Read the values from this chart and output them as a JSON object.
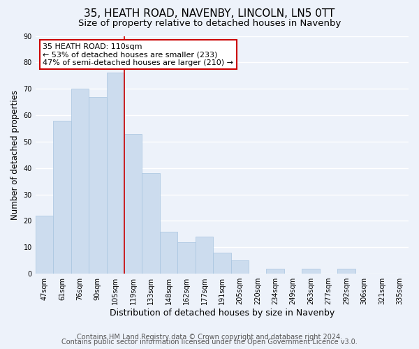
{
  "title": "35, HEATH ROAD, NAVENBY, LINCOLN, LN5 0TT",
  "subtitle": "Size of property relative to detached houses in Navenby",
  "xlabel": "Distribution of detached houses by size in Navenby",
  "ylabel": "Number of detached properties",
  "bar_labels": [
    "47sqm",
    "61sqm",
    "76sqm",
    "90sqm",
    "105sqm",
    "119sqm",
    "133sqm",
    "148sqm",
    "162sqm",
    "177sqm",
    "191sqm",
    "205sqm",
    "220sqm",
    "234sqm",
    "249sqm",
    "263sqm",
    "277sqm",
    "292sqm",
    "306sqm",
    "321sqm",
    "335sqm"
  ],
  "bar_values": [
    22,
    58,
    70,
    67,
    76,
    53,
    38,
    16,
    12,
    14,
    8,
    5,
    0,
    2,
    0,
    2,
    0,
    2,
    0,
    0,
    0
  ],
  "bar_color": "#ccdcee",
  "bar_edge_color": "#a8c4e0",
  "highlight_bar_index": 4,
  "annotation_title": "35 HEATH ROAD: 110sqm",
  "annotation_line1": "← 53% of detached houses are smaller (233)",
  "annotation_line2": "47% of semi-detached houses are larger (210) →",
  "annotation_box_color": "#ffffff",
  "annotation_box_edge": "#cc0000",
  "line_color": "#cc0000",
  "ylim": [
    0,
    90
  ],
  "yticks": [
    0,
    10,
    20,
    30,
    40,
    50,
    60,
    70,
    80,
    90
  ],
  "footer1": "Contains HM Land Registry data © Crown copyright and database right 2024.",
  "footer2": "Contains public sector information licensed under the Open Government Licence v3.0.",
  "background_color": "#edf2fa",
  "grid_color": "#ffffff",
  "title_fontsize": 11,
  "subtitle_fontsize": 9.5,
  "ylabel_fontsize": 8.5,
  "xlabel_fontsize": 9,
  "tick_fontsize": 7,
  "footer_fontsize": 7
}
